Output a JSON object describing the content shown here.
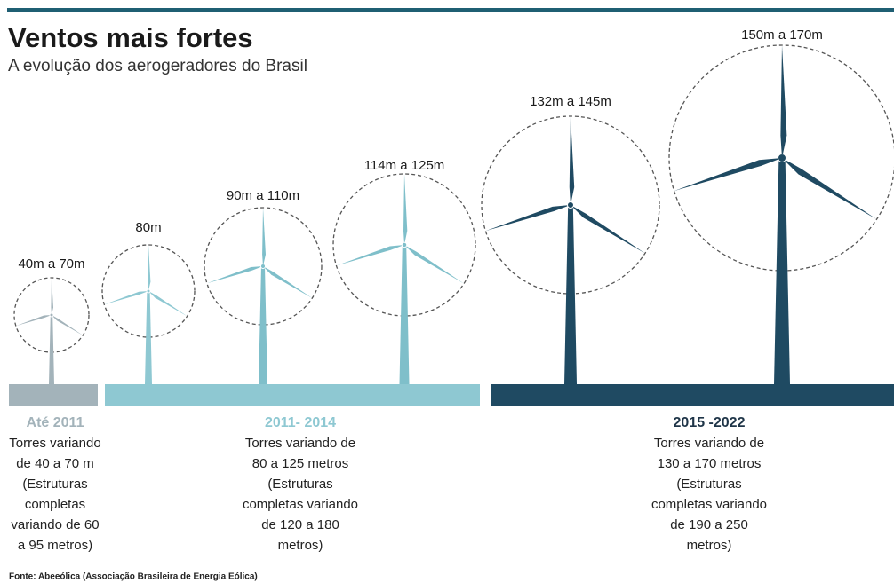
{
  "header": {
    "title": "Ventos mais fortes",
    "subtitle": "A evolução dos aerogeradores do Brasil"
  },
  "turbines": [
    "40m a 70m",
    "80m",
    "90m a 110m",
    "114m a 125m",
    "132m a 145m",
    "150m a 170m"
  ],
  "periods": [
    {
      "title": "Até 2011",
      "lines": [
        "Torres variando",
        "de 40 a 70 m",
        "(Estruturas",
        "completas",
        "variando de 60",
        "a 95 metros)"
      ]
    },
    {
      "title": "2011- 2014",
      "lines": [
        "Torres variando de",
        "80 a 125 metros",
        "(Estruturas",
        "completas variando",
        "de 120 a 180",
        "metros)"
      ]
    },
    {
      "title": "2015 -2022",
      "lines": [
        "Torres variando de",
        "130 a 170 metros",
        "(Estruturas",
        "completas variando",
        "de 190 a 250",
        "metros)"
      ]
    }
  ],
  "source": "Fonte: Abeeólica (Associação Brasileira de Energia Eólica)"
}
